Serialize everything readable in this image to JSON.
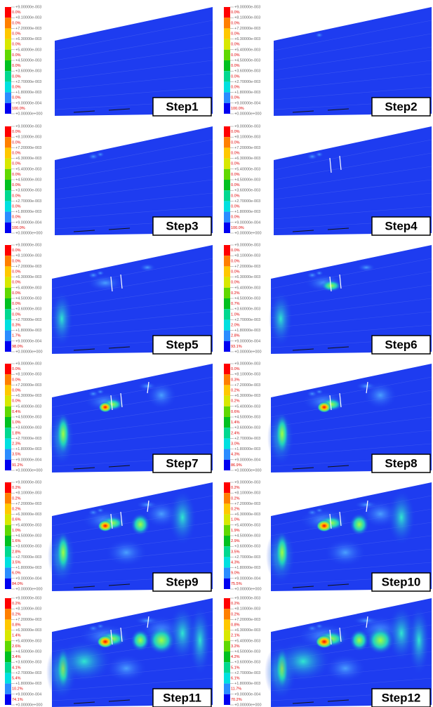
{
  "legend_labels": [
    "+9.00000e-003",
    "+8.10000e-003",
    "+7.20000e-003",
    "+6.30000e-003",
    "+5.40000e-003",
    "+4.50000e-003",
    "+3.60000e-003",
    "+2.70000e-003",
    "+1.80000e-003",
    "+9.00000e-004",
    "+0.00000e+000"
  ],
  "panels": [
    {
      "step": "Step1",
      "percentages": [
        "0.0%",
        "0.0%",
        "0.0%",
        "0.0%",
        "0.0%",
        "0.0%",
        "0.0%",
        "0.0%",
        "0.0%",
        "100.0%"
      ]
    },
    {
      "step": "Step2",
      "percentages": [
        "0.0%",
        "0.0%",
        "0.0%",
        "0.0%",
        "0.0%",
        "0.0%",
        "0.0%",
        "0.0%",
        "0.0%",
        "100.0%"
      ]
    },
    {
      "step": "Step3",
      "percentages": [
        "0.0%",
        "0.0%",
        "0.0%",
        "0.0%",
        "0.0%",
        "0.0%",
        "0.0%",
        "0.0%",
        "0.0%",
        "100.0%"
      ]
    },
    {
      "step": "Step4",
      "percentages": [
        "0.0%",
        "0.0%",
        "0.0%",
        "0.0%",
        "0.0%",
        "0.0%",
        "0.0%",
        "0.0%",
        "0.0%",
        "100.0%"
      ]
    },
    {
      "step": "Step5",
      "percentages": [
        "0.0%",
        "0.0%",
        "0.0%",
        "0.0%",
        "0.0%",
        "0.0%",
        "0.0%",
        "0.3%",
        "1.7%",
        "98.0%"
      ]
    },
    {
      "step": "Step6",
      "percentages": [
        "0.0%",
        "0.0%",
        "0.0%",
        "0.0%",
        "0.2%",
        "0.7%",
        "1.0%",
        "2.0%",
        "2.8%",
        "93.1%"
      ]
    },
    {
      "step": "Step7",
      "percentages": [
        "0.0%",
        "0.0%",
        "0.0%",
        "0.0%",
        "0.4%",
        "1.0%",
        "1.8%",
        "2.3%",
        "3.5%",
        "91.2%"
      ]
    },
    {
      "step": "Step8",
      "percentages": [
        "0.0%",
        "0.3%",
        "0.2%",
        "0.2%",
        "0.6%",
        "1.4%",
        "2.4%",
        "3.0%",
        "4.3%",
        "86.9%"
      ]
    },
    {
      "step": "Step9",
      "percentages": [
        "0.2%",
        "0.2%",
        "0.2%",
        "0.6%",
        "1.0%",
        "1.6%",
        "2.8%",
        "3.5%",
        "6.0%",
        "84.0%"
      ]
    },
    {
      "step": "Step10",
      "percentages": [
        "0.2%",
        "0.2%",
        "0.2%",
        "1.0%",
        "1.9%",
        "2.9%",
        "3.5%",
        "4.3%",
        "9.0%",
        "75.5%"
      ]
    },
    {
      "step": "Step11",
      "percentages": [
        "0.2%",
        "0.2%",
        "0.8%",
        "1.4%",
        "2.6%",
        "3.4%",
        "4.1%",
        "5.4%",
        "10.2%",
        "74.1%"
      ]
    },
    {
      "step": "Step12",
      "percentages": [
        "0.2%",
        "0.2%",
        "0.8%",
        "2.1%",
        "3.2%",
        "4.2%",
        "5.1%",
        "6.1%",
        "11.7%",
        "70.2%"
      ]
    }
  ]
}
